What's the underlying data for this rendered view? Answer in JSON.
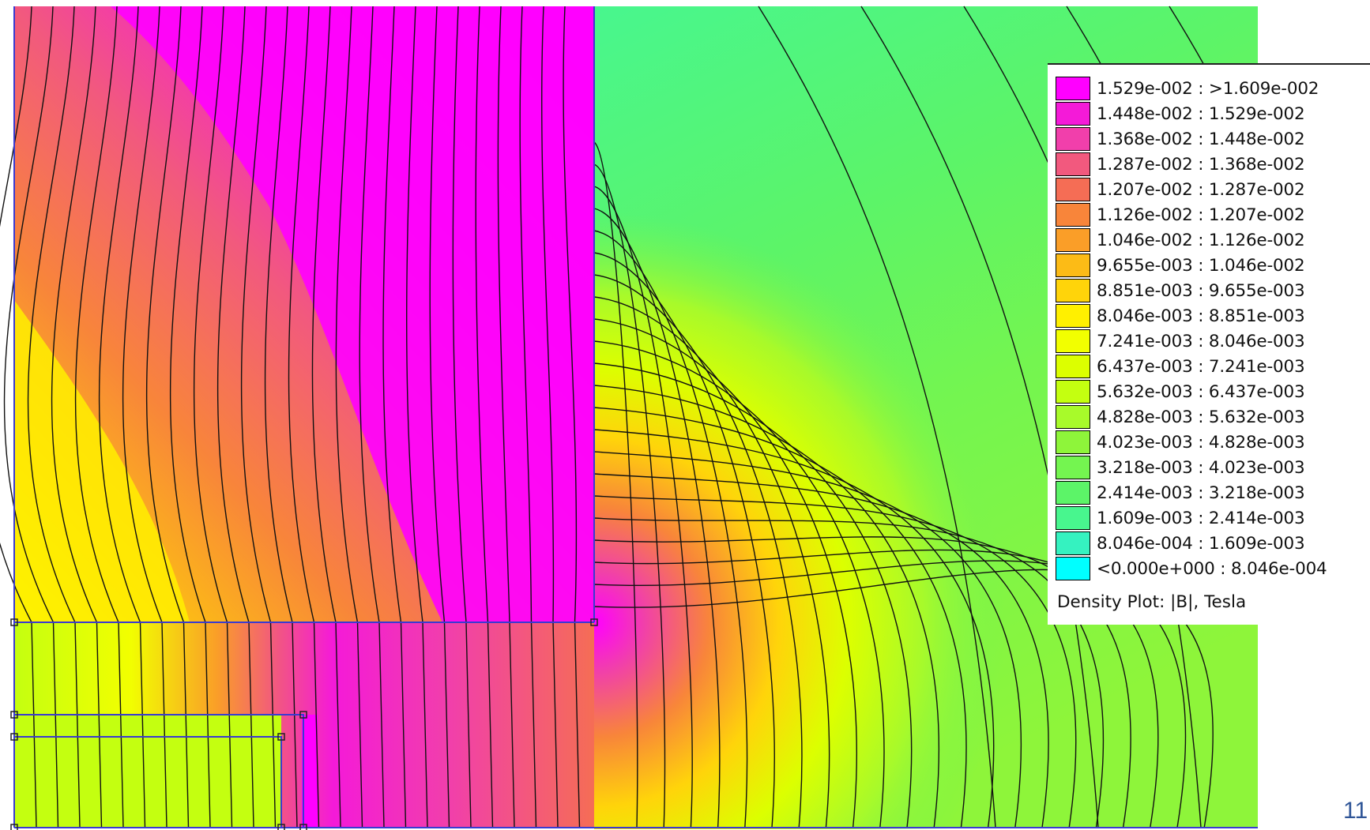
{
  "legend": {
    "entries": [
      {
        "label": "1.529e-002 : >1.609e-002",
        "color": "#ff00ff"
      },
      {
        "label": "1.448e-002 : 1.529e-002",
        "color": "#f41ad8"
      },
      {
        "label": "1.368e-002 : 1.448e-002",
        "color": "#f13fab"
      },
      {
        "label": "1.287e-002 : 1.368e-002",
        "color": "#f2597e"
      },
      {
        "label": "1.207e-002 : 1.287e-002",
        "color": "#f56d55"
      },
      {
        "label": "1.126e-002 : 1.207e-002",
        "color": "#f8853a"
      },
      {
        "label": "1.046e-002 : 1.126e-002",
        "color": "#fa9e28"
      },
      {
        "label": "9.655e-003 : 1.046e-002",
        "color": "#fcbb16"
      },
      {
        "label": "8.851e-003 : 9.655e-003",
        "color": "#ffd40a"
      },
      {
        "label": "8.046e-003 : 8.851e-003",
        "color": "#fff000"
      },
      {
        "label": "7.241e-003 : 8.046e-003",
        "color": "#f2ff00"
      },
      {
        "label": "6.437e-003 : 7.241e-003",
        "color": "#dcff00"
      },
      {
        "label": "5.632e-003 : 6.437e-003",
        "color": "#c4ff10"
      },
      {
        "label": "4.828e-003 : 5.632e-003",
        "color": "#a8fa2a"
      },
      {
        "label": "4.023e-003 : 4.828e-003",
        "color": "#8ef53a"
      },
      {
        "label": "3.218e-003 : 4.023e-003",
        "color": "#74f550"
      },
      {
        "label": "2.414e-003 : 3.218e-003",
        "color": "#5cf468"
      },
      {
        "label": "1.609e-003 : 2.414e-003",
        "color": "#48f68e"
      },
      {
        "label": "8.046e-004 : 1.609e-003",
        "color": "#35f2c0"
      },
      {
        "label": "<0.000e+000 : 8.046e-004",
        "color": "#00ffff"
      }
    ],
    "caption": "Density Plot: |B|, Tesla"
  },
  "slide_number": "11"
}
